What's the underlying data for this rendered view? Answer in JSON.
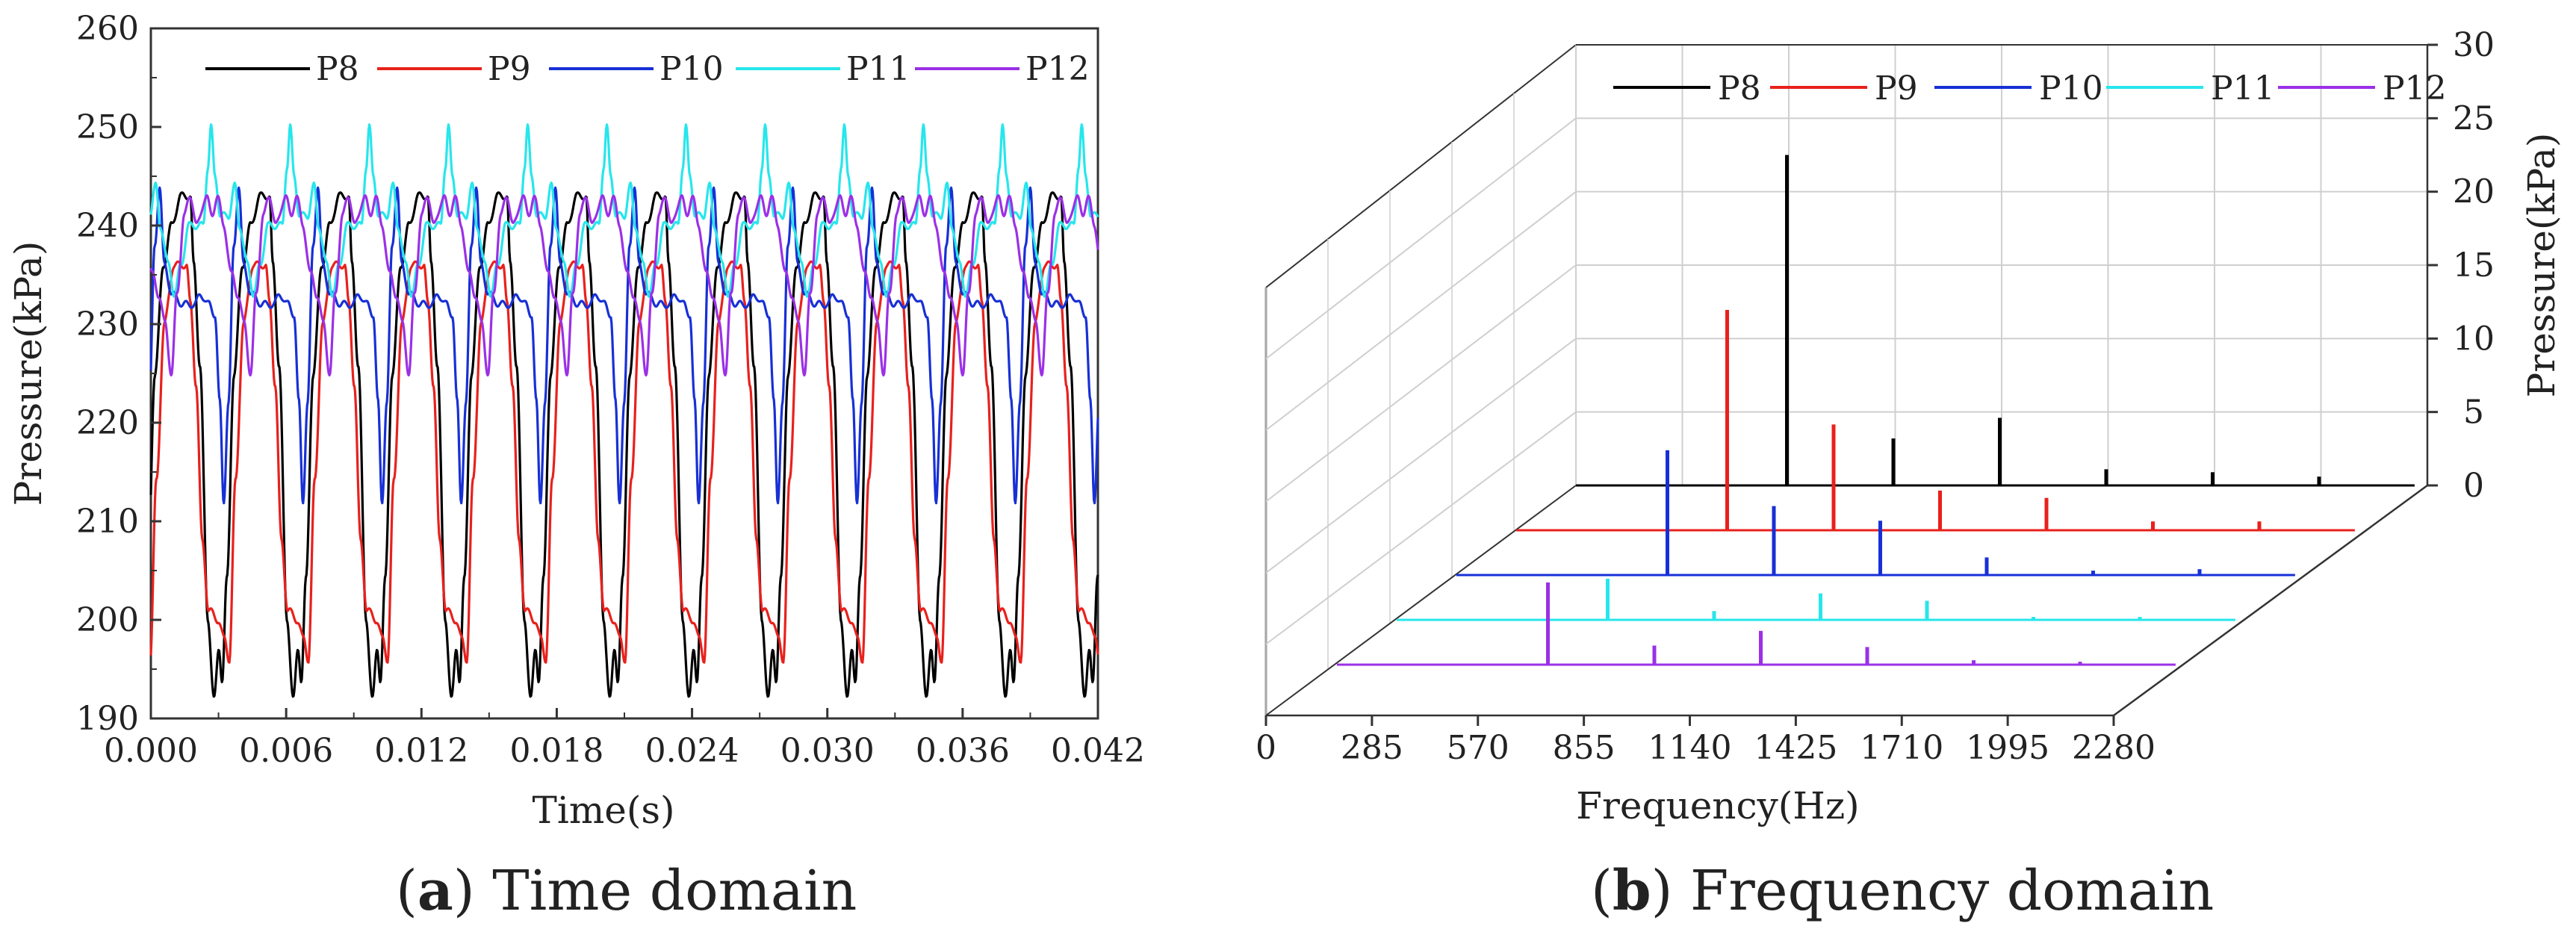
{
  "colors": {
    "P8": "#000000",
    "P9": "#e8211c",
    "P10": "#1730d6",
    "P11": "#27e6ec",
    "P12": "#9b30e6",
    "axis": "#333333",
    "grid": "#cfcfcf"
  },
  "captions": {
    "a_label": "a",
    "a_text": "Time domain",
    "b_label": "b",
    "b_text": "Frequency domain"
  },
  "chart_data": [
    {
      "type": "line",
      "title": "",
      "xlabel": "Time(s)",
      "ylabel": "Pressure(kPa)",
      "xlim": [
        0.0,
        0.042
      ],
      "ylim": [
        190,
        260
      ],
      "xticks": [
        "0.000",
        "0.006",
        "0.012",
        "0.018",
        "0.024",
        "0.030",
        "0.036",
        "0.042"
      ],
      "yticks": [
        "190",
        "200",
        "210",
        "220",
        "230",
        "240",
        "250",
        "260"
      ],
      "legend": [
        "P8",
        "P9",
        "P10",
        "P11",
        "P12"
      ],
      "period_s": 0.00351,
      "series": [
        {
          "name": "P8",
          "min": 191,
          "max": 243,
          "shape": "sharp drop to trough then rise"
        },
        {
          "name": "P9",
          "min": 195,
          "max": 237,
          "shape": "drop to lower plateau then rise"
        },
        {
          "name": "P10",
          "min": 212,
          "max": 244,
          "shape": "narrow dip from plateau near 232"
        },
        {
          "name": "P11",
          "min": 233,
          "max": 250,
          "shape": "sharp peak near 250 then plateau near 241"
        },
        {
          "name": "P12",
          "min": 225,
          "max": 243,
          "shape": "double hump near 243 with dip to 225"
        }
      ]
    },
    {
      "type": "bar",
      "subtype": "3d-spectrum",
      "title": "",
      "xlabel": "Frequency(Hz)",
      "zlabel": "Pressure(kPa)",
      "xlim": [
        0,
        2280
      ],
      "zlim": [
        0,
        30
      ],
      "xticks": [
        "0",
        "285",
        "570",
        "855",
        "1140",
        "1425",
        "1710",
        "1995",
        "2280"
      ],
      "zticks": [
        "0",
        "5",
        "10",
        "15",
        "20",
        "25",
        "30"
      ],
      "legend": [
        "P8",
        "P9",
        "P10",
        "P11",
        "P12"
      ],
      "series": [
        {
          "name": "P8",
          "freqs": [
            285,
            570,
            855,
            1140,
            1425,
            1710
          ],
          "amps": [
            22.5,
            3.2,
            4.6,
            1.1,
            0.9,
            0.6
          ]
        },
        {
          "name": "P9",
          "freqs": [
            285,
            570,
            855,
            1140,
            1425,
            1710
          ],
          "amps": [
            15.0,
            7.2,
            2.7,
            2.2,
            0.6,
            0.6
          ]
        },
        {
          "name": "P10",
          "freqs": [
            285,
            570,
            855,
            1140,
            1425,
            1710
          ],
          "amps": [
            8.5,
            4.7,
            3.7,
            1.2,
            0.3,
            0.4
          ]
        },
        {
          "name": "P11",
          "freqs": [
            285,
            570,
            855,
            1140,
            1425,
            1710
          ],
          "amps": [
            2.8,
            0.6,
            1.8,
            1.3,
            0.2,
            0.2
          ]
        },
        {
          "name": "P12",
          "freqs": [
            285,
            570,
            855,
            1140,
            1425,
            1710
          ],
          "amps": [
            5.6,
            1.3,
            2.3,
            1.2,
            0.3,
            0.2
          ]
        }
      ]
    }
  ]
}
